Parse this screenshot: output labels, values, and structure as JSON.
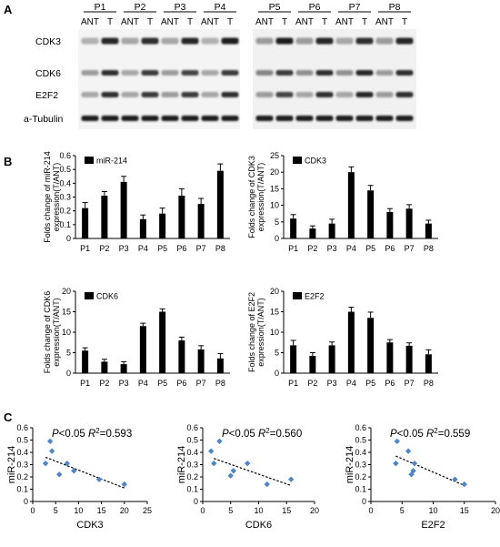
{
  "panels": {
    "a": "A",
    "b": "B",
    "c": "C"
  },
  "blot": {
    "left_patients": [
      "P1",
      "P2",
      "P3",
      "P4"
    ],
    "right_patients": [
      "P5",
      "P6",
      "P7",
      "P8"
    ],
    "lane_ant": "ANT",
    "lane_t": "T",
    "proteins": [
      "CDK3",
      "CDK6",
      "E2F2",
      "a-Tubulin"
    ]
  },
  "chart_data": [
    {
      "type": "bar",
      "legend": "miR-214",
      "ylabel": "Folds change of miR-214 expression(T/ANT)",
      "categories": [
        "P1",
        "P2",
        "P3",
        "P4",
        "P5",
        "P6",
        "P7",
        "P8"
      ],
      "values": [
        0.22,
        0.31,
        0.41,
        0.14,
        0.18,
        0.31,
        0.25,
        0.49
      ],
      "errors": [
        0.04,
        0.03,
        0.04,
        0.03,
        0.04,
        0.05,
        0.04,
        0.05
      ],
      "ylim": [
        0,
        0.6
      ],
      "yticks": [
        0,
        0.1,
        0.2,
        0.3,
        0.4,
        0.5,
        0.6
      ]
    },
    {
      "type": "bar",
      "legend": "CDK3",
      "ylabel": "Folds change of CDK3 expression(T/ANT)",
      "categories": [
        "P1",
        "P2",
        "P3",
        "P4",
        "P5",
        "P6",
        "P7",
        "P8"
      ],
      "values": [
        6,
        3,
        4.5,
        20,
        14.5,
        8,
        9,
        4.5
      ],
      "errors": [
        1.2,
        0.8,
        1.3,
        1.6,
        1.5,
        1.0,
        1.2,
        1.0
      ],
      "ylim": [
        0,
        25
      ],
      "yticks": [
        0,
        5,
        10,
        15,
        20,
        25
      ]
    },
    {
      "type": "bar",
      "legend": "CDK6",
      "ylabel": "Folds change of CDK6 expression(T/ANT)",
      "categories": [
        "P1",
        "P2",
        "P3",
        "P4",
        "P5",
        "P6",
        "P7",
        "P8"
      ],
      "values": [
        5.5,
        2.8,
        2.2,
        11.5,
        15,
        8,
        5.8,
        3.6
      ],
      "errors": [
        0.7,
        0.6,
        0.6,
        0.7,
        0.7,
        0.8,
        0.9,
        1.2
      ],
      "ylim": [
        0,
        20
      ],
      "yticks": [
        0,
        5,
        10,
        15,
        20
      ]
    },
    {
      "type": "bar",
      "legend": "E2F2",
      "ylabel": "Folds change of E2F2 expression(T/ANT)",
      "categories": [
        "P1",
        "P2",
        "P3",
        "P4",
        "P5",
        "P6",
        "P7",
        "P8"
      ],
      "values": [
        6.8,
        4.2,
        6.8,
        15,
        13.5,
        7.5,
        6.7,
        4.6
      ],
      "errors": [
        1.2,
        0.8,
        0.8,
        1.1,
        1.4,
        0.7,
        0.7,
        1.1
      ],
      "ylim": [
        0,
        20
      ],
      "yticks": [
        0,
        5,
        10,
        15,
        20
      ]
    },
    {
      "type": "scatter",
      "xlabel": "CDK3",
      "ylabel": "miR-214",
      "stat": {
        "p": "P",
        "p_rest": "<0.05 ",
        "r": "R",
        "r_sup": "2",
        "r_rest": "=0.593"
      },
      "x": [
        2.8,
        3.8,
        4.2,
        5.8,
        7.5,
        9.0,
        14.5,
        20.0
      ],
      "y": [
        0.31,
        0.49,
        0.41,
        0.22,
        0.31,
        0.25,
        0.18,
        0.14
      ],
      "trend": [
        [
          2.8,
          0.36
        ],
        [
          20.0,
          0.11
        ]
      ],
      "xlim": [
        0,
        25
      ],
      "ylim": [
        0,
        0.6
      ],
      "xticks": [
        0,
        5,
        10,
        15,
        20,
        25
      ],
      "yticks": [
        0,
        0.1,
        0.2,
        0.3,
        0.4,
        0.5,
        0.6
      ]
    },
    {
      "type": "scatter",
      "xlabel": "CDK6",
      "ylabel": "miR-214",
      "stat": {
        "p": "P",
        "p_rest": "<0.05 ",
        "r": "R",
        "r_sup": "2",
        "r_rest": "=0.560"
      },
      "x": [
        1.5,
        2.0,
        3.0,
        5.0,
        5.5,
        8.0,
        11.5,
        15.8
      ],
      "y": [
        0.41,
        0.31,
        0.49,
        0.21,
        0.25,
        0.31,
        0.14,
        0.18
      ],
      "trend": [
        [
          2.0,
          0.35
        ],
        [
          15.8,
          0.13
        ]
      ],
      "xlim": [
        0,
        20
      ],
      "ylim": [
        0,
        0.6
      ],
      "xticks": [
        0,
        5,
        10,
        15,
        20
      ],
      "yticks": [
        0,
        0.1,
        0.2,
        0.3,
        0.4,
        0.5,
        0.6
      ]
    },
    {
      "type": "scatter",
      "xlabel": "E2F2",
      "ylabel": "miR-214",
      "stat": {
        "p": "P",
        "p_rest": "<0.05 ",
        "r": "R",
        "r_sup": "2",
        "r_rest": "=0.559"
      },
      "x": [
        4.0,
        4.2,
        6.0,
        6.5,
        6.8,
        7.0,
        13.5,
        15.0
      ],
      "y": [
        0.31,
        0.49,
        0.41,
        0.22,
        0.25,
        0.31,
        0.18,
        0.14
      ],
      "trend": [
        [
          4.0,
          0.37
        ],
        [
          15.0,
          0.13
        ]
      ],
      "xlim": [
        0,
        20
      ],
      "ylim": [
        0,
        0.6
      ],
      "xticks": [
        0,
        5,
        10,
        15,
        20
      ],
      "yticks": [
        0,
        0.1,
        0.2,
        0.3,
        0.4,
        0.5,
        0.6
      ]
    }
  ]
}
